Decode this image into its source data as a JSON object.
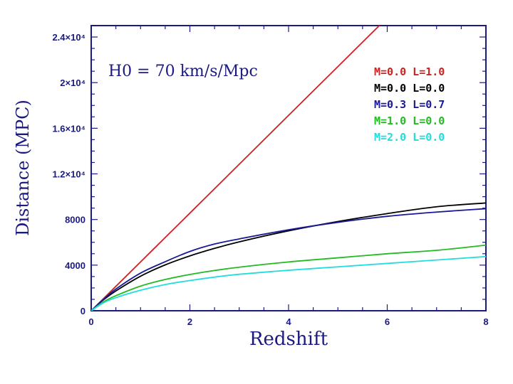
{
  "chart_data": {
    "type": "line",
    "xlabel": "Redshift",
    "ylabel": "Distance (MPC)",
    "annotation": "H0 = 70 km/s/Mpc",
    "xlim": [
      0,
      8
    ],
    "ylim": [
      0,
      25000
    ],
    "x_ticks": [
      0,
      2,
      4,
      6,
      8
    ],
    "x_tick_labels": [
      "0",
      "2",
      "4",
      "6",
      "8"
    ],
    "y_ticks": [
      0,
      4000,
      8000,
      12000,
      16000,
      20000,
      24000
    ],
    "y_tick_labels": [
      "0",
      "4000",
      "8000",
      "1.2×10⁴",
      "1.6×10⁴",
      "2×10⁴",
      "2.4×10⁴"
    ],
    "grid": false,
    "legend_position": "top-right",
    "x": [
      0,
      0.25,
      0.5,
      1,
      1.5,
      2,
      2.5,
      3,
      4,
      5,
      6,
      7,
      8
    ],
    "series": [
      {
        "name": "M=0.0 L=1.0",
        "color": "#cc2222",
        "values": [
          0,
          1070,
          2140,
          4280,
          6420,
          8560,
          10700,
          12840,
          17130,
          21410,
          25690,
          null,
          null
        ]
      },
      {
        "name": "M=0.0 L=0.0",
        "color": "#000000",
        "values": [
          0,
          960,
          1740,
          3030,
          4020,
          4810,
          5470,
          6040,
          7010,
          7820,
          8520,
          9120,
          9450
        ]
      },
      {
        "name": "M=0.3 L=0.7",
        "color": "#1a1a99",
        "values": [
          0,
          1000,
          1900,
          3300,
          4300,
          5200,
          5850,
          6300,
          7100,
          7750,
          8280,
          8650,
          8950
        ]
      },
      {
        "name": "M=1.0 L=0.0",
        "color": "#22bb22",
        "values": [
          0,
          780,
          1320,
          2160,
          2740,
          3180,
          3530,
          3820,
          4280,
          4640,
          5000,
          5300,
          5750
        ]
      },
      {
        "name": "M=2.0 L=0.0",
        "color": "#22dddd",
        "values": [
          0,
          700,
          1150,
          1800,
          2300,
          2650,
          2950,
          3200,
          3550,
          3850,
          4150,
          4450,
          4750
        ]
      }
    ]
  }
}
